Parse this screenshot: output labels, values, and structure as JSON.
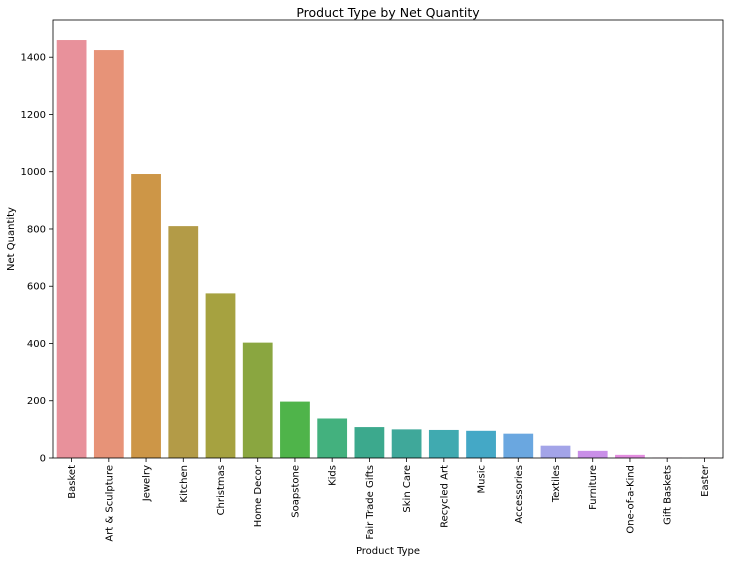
{
  "chart_data": {
    "type": "bar",
    "title": "Product Type by Net Quantity",
    "xlabel": "Product Type",
    "ylabel": "Net Quantity",
    "ylim": [
      0,
      1530
    ],
    "yticks": [
      0,
      200,
      400,
      600,
      800,
      1000,
      1200,
      1400
    ],
    "grid": false,
    "legend": "none",
    "categories": [
      "Basket",
      "Art & Sculpture",
      "Jewelry",
      "Kitchen",
      "Christmas",
      "Home Decor",
      "Soapstone",
      "Kids",
      "Fair Trade Gifts",
      "Skin Care",
      "Recycled Art",
      "Music",
      "Accessories",
      "Textiles",
      "Furniture",
      "One-of-a-Kind",
      "Gift Baskets",
      "Easter"
    ],
    "values": [
      1460,
      1425,
      992,
      810,
      575,
      403,
      197,
      138,
      108,
      100,
      98,
      95,
      85,
      43,
      25,
      11,
      1,
      1
    ],
    "colors": [
      "#e8919b",
      "#e79378",
      "#cd9647",
      "#b39b47",
      "#a6a240",
      "#8aa640",
      "#4fb44a",
      "#43b17e",
      "#3ca98d",
      "#3fa89a",
      "#40aab0",
      "#44a8c6",
      "#6aa7e0",
      "#a3a4e8",
      "#c98fe8",
      "#e38de0",
      "#e58ec8",
      "#e88fb0"
    ]
  }
}
